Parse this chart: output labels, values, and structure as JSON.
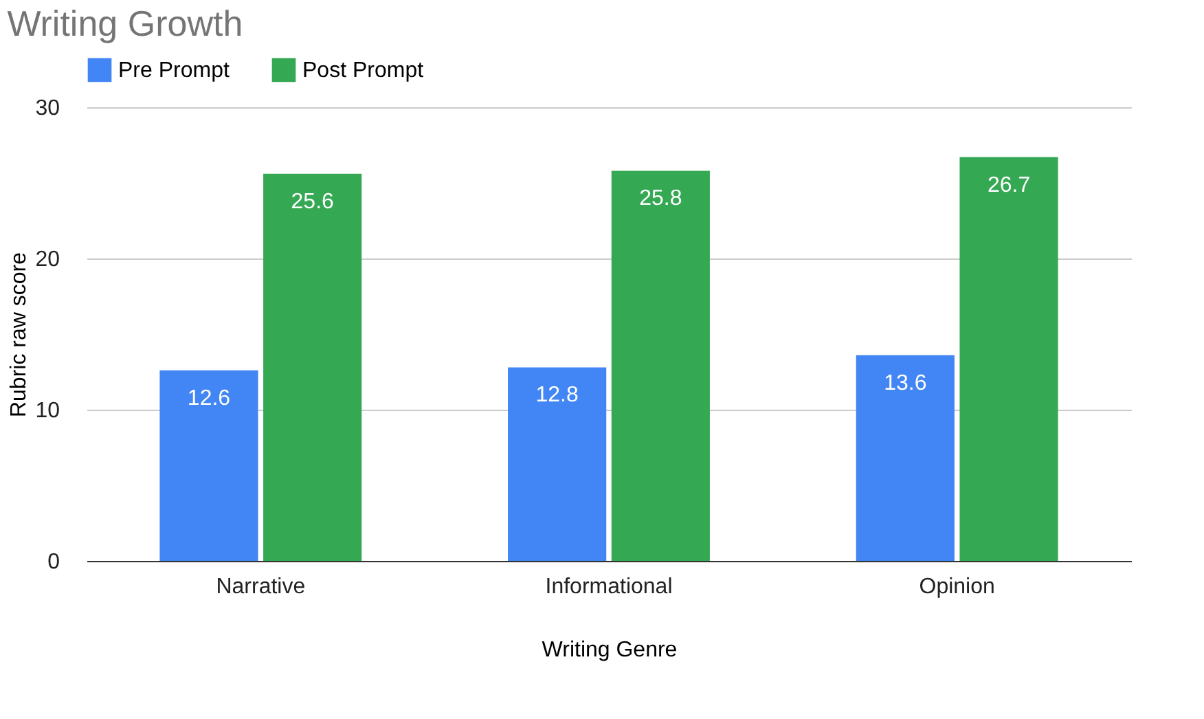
{
  "chart_data": {
    "type": "bar",
    "title": "Writing Growth",
    "xlabel": "Writing Genre",
    "ylabel": "Rubric raw score",
    "categories": [
      "Narrative",
      "Informational",
      "Opinion"
    ],
    "series": [
      {
        "name": "Pre Prompt",
        "color": "#4285f4",
        "values": [
          12.6,
          12.8,
          13.6
        ]
      },
      {
        "name": "Post Prompt",
        "color": "#34a853",
        "values": [
          25.6,
          25.8,
          26.7
        ]
      }
    ],
    "ylim": [
      0,
      30
    ],
    "yticks": [
      0,
      10,
      20,
      30
    ],
    "grid": "y",
    "legend": "top",
    "data_labels": true
  }
}
